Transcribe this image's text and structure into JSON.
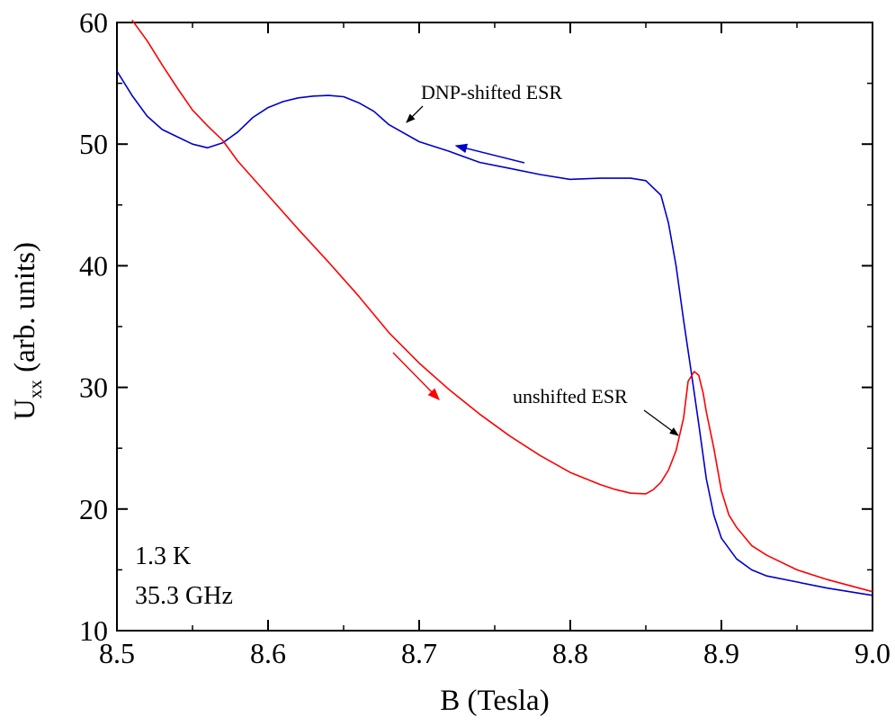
{
  "chart_data": {
    "type": "line",
    "title": "",
    "xlabel": "B (Tesla)",
    "ylabel": {
      "main": "U",
      "sub": "xx",
      "rest": " (arb. units)"
    },
    "xlim": [
      8.5,
      9.0
    ],
    "ylim": [
      10,
      60
    ],
    "x_ticks": [
      "8.5",
      "8.6",
      "8.7",
      "8.8",
      "8.9",
      "9.0"
    ],
    "y_ticks": [
      "10",
      "20",
      "30",
      "40",
      "50",
      "60"
    ],
    "grid": false,
    "legend": "none",
    "colors": {
      "blue": "#0000cc",
      "red": "#ff0000"
    },
    "series": [
      {
        "color": "#0000cc",
        "x": [
          8.5,
          8.51,
          8.52,
          8.53,
          8.54,
          8.55,
          8.56,
          8.57,
          8.58,
          8.59,
          8.6,
          8.61,
          8.62,
          8.63,
          8.64,
          8.65,
          8.66,
          8.67,
          8.68,
          8.7,
          8.72,
          8.74,
          8.76,
          8.78,
          8.8,
          8.82,
          8.84,
          8.85,
          8.86,
          8.865,
          8.87,
          8.875,
          8.88,
          8.885,
          8.89,
          8.895,
          8.9,
          8.91,
          8.92,
          8.93,
          8.95,
          8.97,
          9.0
        ],
        "y": [
          56.0,
          54.0,
          52.3,
          51.2,
          50.6,
          50.0,
          49.7,
          50.1,
          51.0,
          52.2,
          53.0,
          53.5,
          53.8,
          53.95,
          54.0,
          53.9,
          53.4,
          52.7,
          51.6,
          50.2,
          49.4,
          48.5,
          48.0,
          47.5,
          47.1,
          47.2,
          47.2,
          47.0,
          45.8,
          43.5,
          40.0,
          35.5,
          31.3,
          27.0,
          22.5,
          19.5,
          17.6,
          15.9,
          15.0,
          14.5,
          14.0,
          13.5,
          12.9
        ]
      },
      {
        "color": "#ff0000",
        "x": [
          8.51,
          8.52,
          8.53,
          8.54,
          8.55,
          8.56,
          8.57,
          8.58,
          8.6,
          8.62,
          8.64,
          8.66,
          8.68,
          8.7,
          8.72,
          8.74,
          8.76,
          8.78,
          8.8,
          8.82,
          8.83,
          8.84,
          8.85,
          8.855,
          8.86,
          8.865,
          8.87,
          8.875,
          8.878,
          8.882,
          8.885,
          8.888,
          8.89,
          8.895,
          8.9,
          8.905,
          8.91,
          8.92,
          8.93,
          8.95,
          8.97,
          9.0
        ],
        "y": [
          60.2,
          58.5,
          56.5,
          54.6,
          52.8,
          51.5,
          50.3,
          48.6,
          45.8,
          43.0,
          40.3,
          37.5,
          34.5,
          32.0,
          29.8,
          27.8,
          26.0,
          24.4,
          23.0,
          22.0,
          21.6,
          21.3,
          21.25,
          21.6,
          22.2,
          23.2,
          24.8,
          27.5,
          30.5,
          31.3,
          31.0,
          29.5,
          28.0,
          25.0,
          21.5,
          19.5,
          18.5,
          17.0,
          16.2,
          15.0,
          14.2,
          13.2
        ]
      }
    ],
    "annotations": {
      "dnp_label": "DNP-shifted ESR",
      "unshifted_label": "unshifted ESR",
      "temperature": "1.3 K",
      "frequency": "35.3 GHz"
    }
  }
}
